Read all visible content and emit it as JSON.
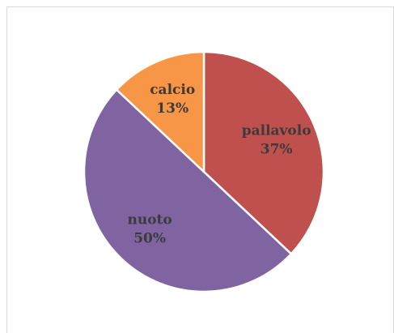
{
  "chart_data": {
    "type": "pie",
    "categories": [
      "pallavolo",
      "nuoto",
      "calcio"
    ],
    "values": [
      37,
      50,
      13
    ],
    "value_labels": [
      "37%",
      "50%",
      "13%"
    ],
    "colors": [
      "#c0504d",
      "#8064a2",
      "#f79646"
    ]
  }
}
